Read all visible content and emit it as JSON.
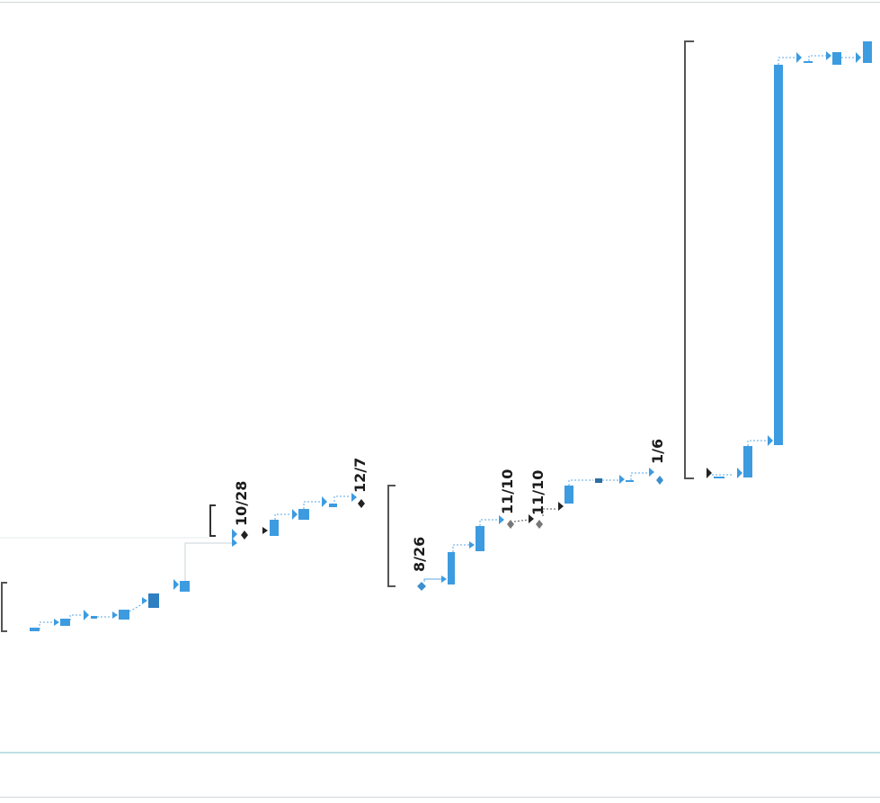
{
  "view": "gantt-rotated",
  "colors": {
    "task_bar": "#3d9be0",
    "task_bar_dark": "#2d7fc1",
    "link_line": "#5aa7e6",
    "summary_bracket": "#555555",
    "milestone_done": "#222222",
    "milestone_open": "#3d8fce",
    "milestone_gray": "#777777"
  },
  "milestones": [
    {
      "label": "10/28"
    },
    {
      "label": "12/7"
    },
    {
      "label": "8/26"
    },
    {
      "label": "11/10"
    },
    {
      "label": "11/10"
    },
    {
      "label": "1/6"
    }
  ]
}
